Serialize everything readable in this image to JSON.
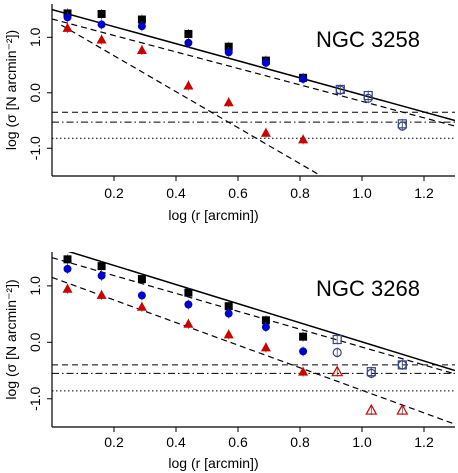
{
  "chart_data": [
    {
      "type": "scatter",
      "title": "NGC 3258",
      "xlabel": "log (r [arcmin])",
      "ylabel": "log (σ [N arcmin⁻²])",
      "xlim": [
        0.0,
        1.3
      ],
      "ylim": [
        -1.5,
        1.6
      ],
      "xticks": [
        "0.2",
        "0.4",
        "0.6",
        "0.8",
        "1.0",
        "1.2"
      ],
      "xtick_values": [
        0.2,
        0.4,
        0.6,
        0.8,
        1.0,
        1.2
      ],
      "yticks": [
        "-1.0",
        "0.0",
        "1.0"
      ],
      "ytick_values": [
        -1.0,
        0.0,
        1.0
      ],
      "series": [
        {
          "marker": "square-filled",
          "color": "#000000",
          "x": [
            0.05,
            0.16,
            0.29,
            0.44,
            0.57,
            0.69,
            0.81
          ],
          "y": [
            1.43,
            1.42,
            1.32,
            1.06,
            0.83,
            0.58,
            0.27
          ]
        },
        {
          "marker": "circle-filled",
          "color": "#0000cc",
          "x": [
            0.05,
            0.16,
            0.29,
            0.44,
            0.57,
            0.69,
            0.81
          ],
          "y": [
            1.36,
            1.23,
            1.2,
            0.9,
            0.73,
            0.54,
            0.25
          ]
        },
        {
          "marker": "triangle-filled",
          "color": "#cc0000",
          "x": [
            0.05,
            0.16,
            0.29,
            0.44,
            0.57,
            0.69,
            0.81
          ],
          "y": [
            1.17,
            0.96,
            0.77,
            0.13,
            -0.17,
            -0.72,
            -0.84
          ]
        },
        {
          "marker": "square-open",
          "color": "#334488",
          "x": [
            0.93,
            1.02,
            1.13
          ],
          "y": [
            0.06,
            -0.05,
            -0.56
          ]
        },
        {
          "marker": "circle-open",
          "color": "#334488",
          "x": [
            0.93,
            1.02,
            1.13
          ],
          "y": [
            0.05,
            -0.1,
            -0.6
          ]
        }
      ],
      "fit_lines": [
        {
          "style": "solid",
          "x": [
            0.0,
            1.3
          ],
          "y": [
            1.5,
            -0.5
          ]
        },
        {
          "style": "dashed",
          "x": [
            0.0,
            1.3
          ],
          "y": [
            1.33,
            -0.6
          ]
        },
        {
          "style": "dashed",
          "x": [
            0.03,
            1.3
          ],
          "y": [
            1.22,
            -2.9
          ]
        }
      ],
      "background_lines": [
        {
          "style": "dashed",
          "y": -0.35
        },
        {
          "style": "dashdot",
          "y": -0.53
        },
        {
          "style": "dotted",
          "y": -0.82
        }
      ]
    },
    {
      "type": "scatter",
      "title": "NGC 3268",
      "xlabel": "log (r [arcmin])",
      "ylabel": "log (σ [N arcmin⁻²])",
      "xlim": [
        0.0,
        1.3
      ],
      "ylim": [
        -1.5,
        1.6
      ],
      "xticks": [
        "0.2",
        "0.4",
        "0.6",
        "0.8",
        "1.0",
        "1.2"
      ],
      "xtick_values": [
        0.2,
        0.4,
        0.6,
        0.8,
        1.0,
        1.2
      ],
      "yticks": [
        "-1.0",
        "0.0",
        "1.0"
      ],
      "ytick_values": [
        -1.0,
        0.0,
        1.0
      ],
      "series": [
        {
          "marker": "square-filled",
          "color": "#000000",
          "x": [
            0.05,
            0.16,
            0.29,
            0.44,
            0.57,
            0.69,
            0.81
          ],
          "y": [
            1.47,
            1.35,
            1.12,
            0.88,
            0.64,
            0.39,
            0.1
          ]
        },
        {
          "marker": "circle-filled",
          "color": "#0000cc",
          "x": [
            0.05,
            0.16,
            0.29,
            0.44,
            0.57,
            0.69,
            0.81
          ],
          "y": [
            1.3,
            1.18,
            0.83,
            0.67,
            0.51,
            0.27,
            -0.16
          ]
        },
        {
          "marker": "triangle-filled",
          "color": "#cc0000",
          "x": [
            0.05,
            0.16,
            0.29,
            0.44,
            0.57,
            0.69,
            0.81
          ],
          "y": [
            0.95,
            0.84,
            0.63,
            0.33,
            0.14,
            -0.09,
            -0.52
          ]
        },
        {
          "marker": "square-open",
          "color": "#334488",
          "x": [
            0.92,
            1.03,
            1.13
          ],
          "y": [
            0.05,
            -0.52,
            -0.4
          ]
        },
        {
          "marker": "circle-open",
          "color": "#334488",
          "x": [
            0.92,
            1.03,
            1.13
          ],
          "y": [
            -0.18,
            -0.55,
            -0.4
          ]
        },
        {
          "marker": "triangle-open",
          "color": "#cc0000",
          "x": [
            0.92,
            1.03,
            1.13
          ],
          "y": [
            -0.52,
            -1.2,
            -1.2
          ]
        }
      ],
      "fit_lines": [
        {
          "style": "solid",
          "x": [
            0.0,
            1.3
          ],
          "y": [
            1.7,
            -0.5
          ]
        },
        {
          "style": "dashed",
          "x": [
            0.0,
            1.3
          ],
          "y": [
            1.5,
            -0.56
          ]
        },
        {
          "style": "dashed",
          "x": [
            0.0,
            1.3
          ],
          "y": [
            1.15,
            -1.45
          ]
        }
      ],
      "background_lines": [
        {
          "style": "dashed",
          "y": -0.4
        },
        {
          "style": "dashdot",
          "y": -0.55
        },
        {
          "style": "dotted",
          "y": -0.86
        }
      ]
    }
  ]
}
